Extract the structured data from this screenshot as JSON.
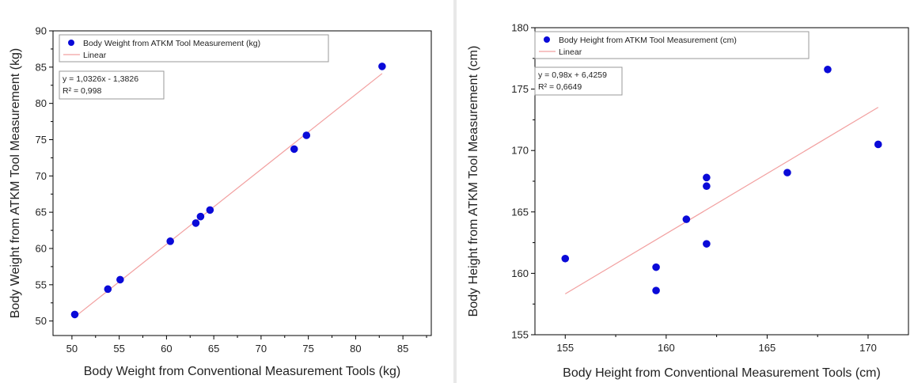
{
  "chart_data": [
    {
      "type": "scatter",
      "xlabel": "Body Weight from Conventional Measurement Tools (kg)",
      "ylabel": "Body Weight from ATKM Tool Measurement (kg)",
      "xlim": [
        48,
        88
      ],
      "ylim": [
        48,
        90
      ],
      "xticks": [
        50,
        55,
        60,
        65,
        70,
        75,
        80,
        85
      ],
      "yticks": [
        50,
        55,
        60,
        65,
        70,
        75,
        80,
        85,
        90
      ],
      "legend": [
        "Body Weight from ATKM Tool Measurement (kg)",
        "Linear"
      ],
      "legend_position": "top-left",
      "equation": "y = 1,0326x - 1,3826",
      "r_squared": "R² = 0,998",
      "fit": {
        "slope": 1.0326,
        "intercept": -1.3826,
        "x_range": [
          50.3,
          82.8
        ]
      },
      "points": [
        {
          "x": 50.3,
          "y": 50.9
        },
        {
          "x": 53.8,
          "y": 54.4
        },
        {
          "x": 55.1,
          "y": 55.7
        },
        {
          "x": 60.4,
          "y": 61.0
        },
        {
          "x": 63.1,
          "y": 63.5
        },
        {
          "x": 63.6,
          "y": 64.4
        },
        {
          "x": 64.6,
          "y": 65.3
        },
        {
          "x": 73.5,
          "y": 73.7
        },
        {
          "x": 74.8,
          "y": 75.6
        },
        {
          "x": 82.8,
          "y": 85.1
        }
      ],
      "colors": {
        "point": "#0a0ad8",
        "fit": "#f2a0a0"
      }
    },
    {
      "type": "scatter",
      "xlabel": "Body Height from Conventional Measurement Tools (cm)",
      "ylabel": "Body Height from ATKM Tool Measurement (cm)",
      "xlim": [
        153.5,
        172
      ],
      "ylim": [
        155,
        180
      ],
      "xticks": [
        155,
        160,
        165,
        170
      ],
      "yticks": [
        155,
        160,
        165,
        170,
        175,
        180
      ],
      "legend": [
        "Body Height from ATKM Tool Measurement (cm)",
        "Linear"
      ],
      "legend_position": "top-left",
      "equation": "y = 0,98x + 6,4259",
      "r_squared": "R² = 0,6649",
      "fit": {
        "slope": 0.98,
        "intercept": 6.4259,
        "x_range": [
          155,
          170.5
        ]
      },
      "points": [
        {
          "x": 155.0,
          "y": 161.2
        },
        {
          "x": 159.5,
          "y": 160.5
        },
        {
          "x": 159.5,
          "y": 158.6
        },
        {
          "x": 161.0,
          "y": 164.4
        },
        {
          "x": 162.0,
          "y": 167.8
        },
        {
          "x": 162.0,
          "y": 167.1
        },
        {
          "x": 162.0,
          "y": 162.4
        },
        {
          "x": 166.0,
          "y": 168.2
        },
        {
          "x": 168.0,
          "y": 176.6
        },
        {
          "x": 170.5,
          "y": 170.5
        }
      ],
      "colors": {
        "point": "#0a0ad8",
        "fit": "#f2a0a0"
      }
    }
  ]
}
